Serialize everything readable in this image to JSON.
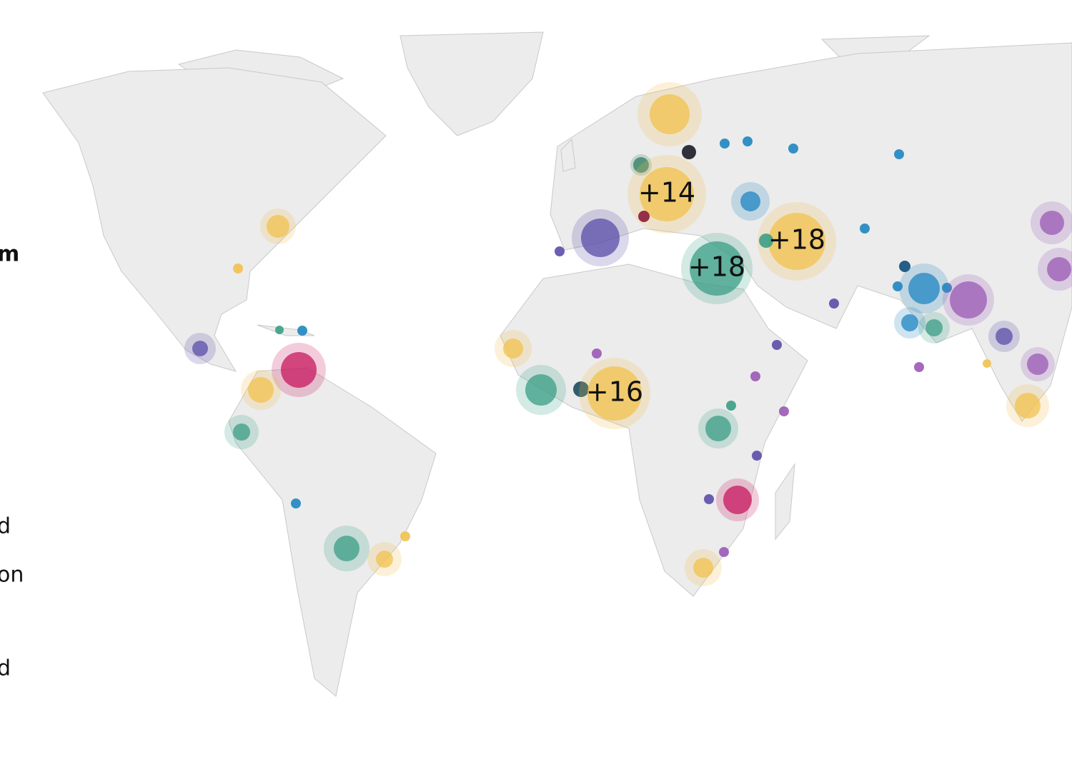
{
  "legend_fragments": {
    "heading": "m",
    "items": [
      "d",
      "on",
      "d"
    ]
  },
  "clusters": [
    "+14",
    "+18",
    "+18",
    "+16"
  ]
}
